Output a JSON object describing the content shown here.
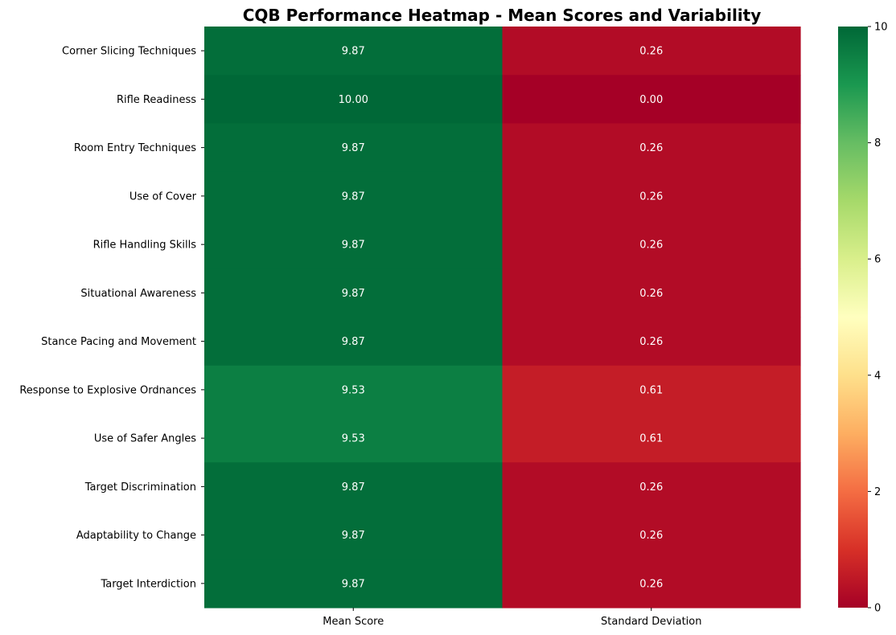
{
  "chart_data": {
    "type": "heatmap",
    "title": "CQB Performance Heatmap - Mean Scores and Variability",
    "xlabel": "",
    "ylabel": "",
    "columns": [
      "Mean Score",
      "Standard Deviation"
    ],
    "rows": [
      "Corner Slicing Techniques",
      "Rifle Readiness",
      "Room Entry Techniques",
      "Use of Cover",
      "Rifle Handling Skills",
      "Situational Awareness",
      "Stance Pacing and Movement",
      "Response to Explosive Ordnances",
      "Use of Safer Angles",
      "Target Discrimination",
      "Adaptability to Change",
      "Target Interdiction"
    ],
    "values": [
      [
        9.87,
        0.26
      ],
      [
        10.0,
        0.0
      ],
      [
        9.87,
        0.26
      ],
      [
        9.87,
        0.26
      ],
      [
        9.87,
        0.26
      ],
      [
        9.87,
        0.26
      ],
      [
        9.87,
        0.26
      ],
      [
        9.53,
        0.61
      ],
      [
        9.53,
        0.61
      ],
      [
        9.87,
        0.26
      ],
      [
        9.87,
        0.26
      ],
      [
        9.87,
        0.26
      ]
    ],
    "cell_labels": [
      [
        "9.87",
        "0.26"
      ],
      [
        "10.00",
        "0.00"
      ],
      [
        "9.87",
        "0.26"
      ],
      [
        "9.87",
        "0.26"
      ],
      [
        "9.87",
        "0.26"
      ],
      [
        "9.87",
        "0.26"
      ],
      [
        "9.87",
        "0.26"
      ],
      [
        "9.53",
        "0.61"
      ],
      [
        "9.53",
        "0.61"
      ],
      [
        "9.87",
        "0.26"
      ],
      [
        "9.87",
        "0.26"
      ],
      [
        "9.87",
        "0.26"
      ]
    ],
    "colormap": "RdYlGn",
    "vmin": 0,
    "vmax": 10,
    "colorbar_ticks": [
      "0",
      "2",
      "4",
      "6",
      "8",
      "10"
    ],
    "grid": false
  }
}
